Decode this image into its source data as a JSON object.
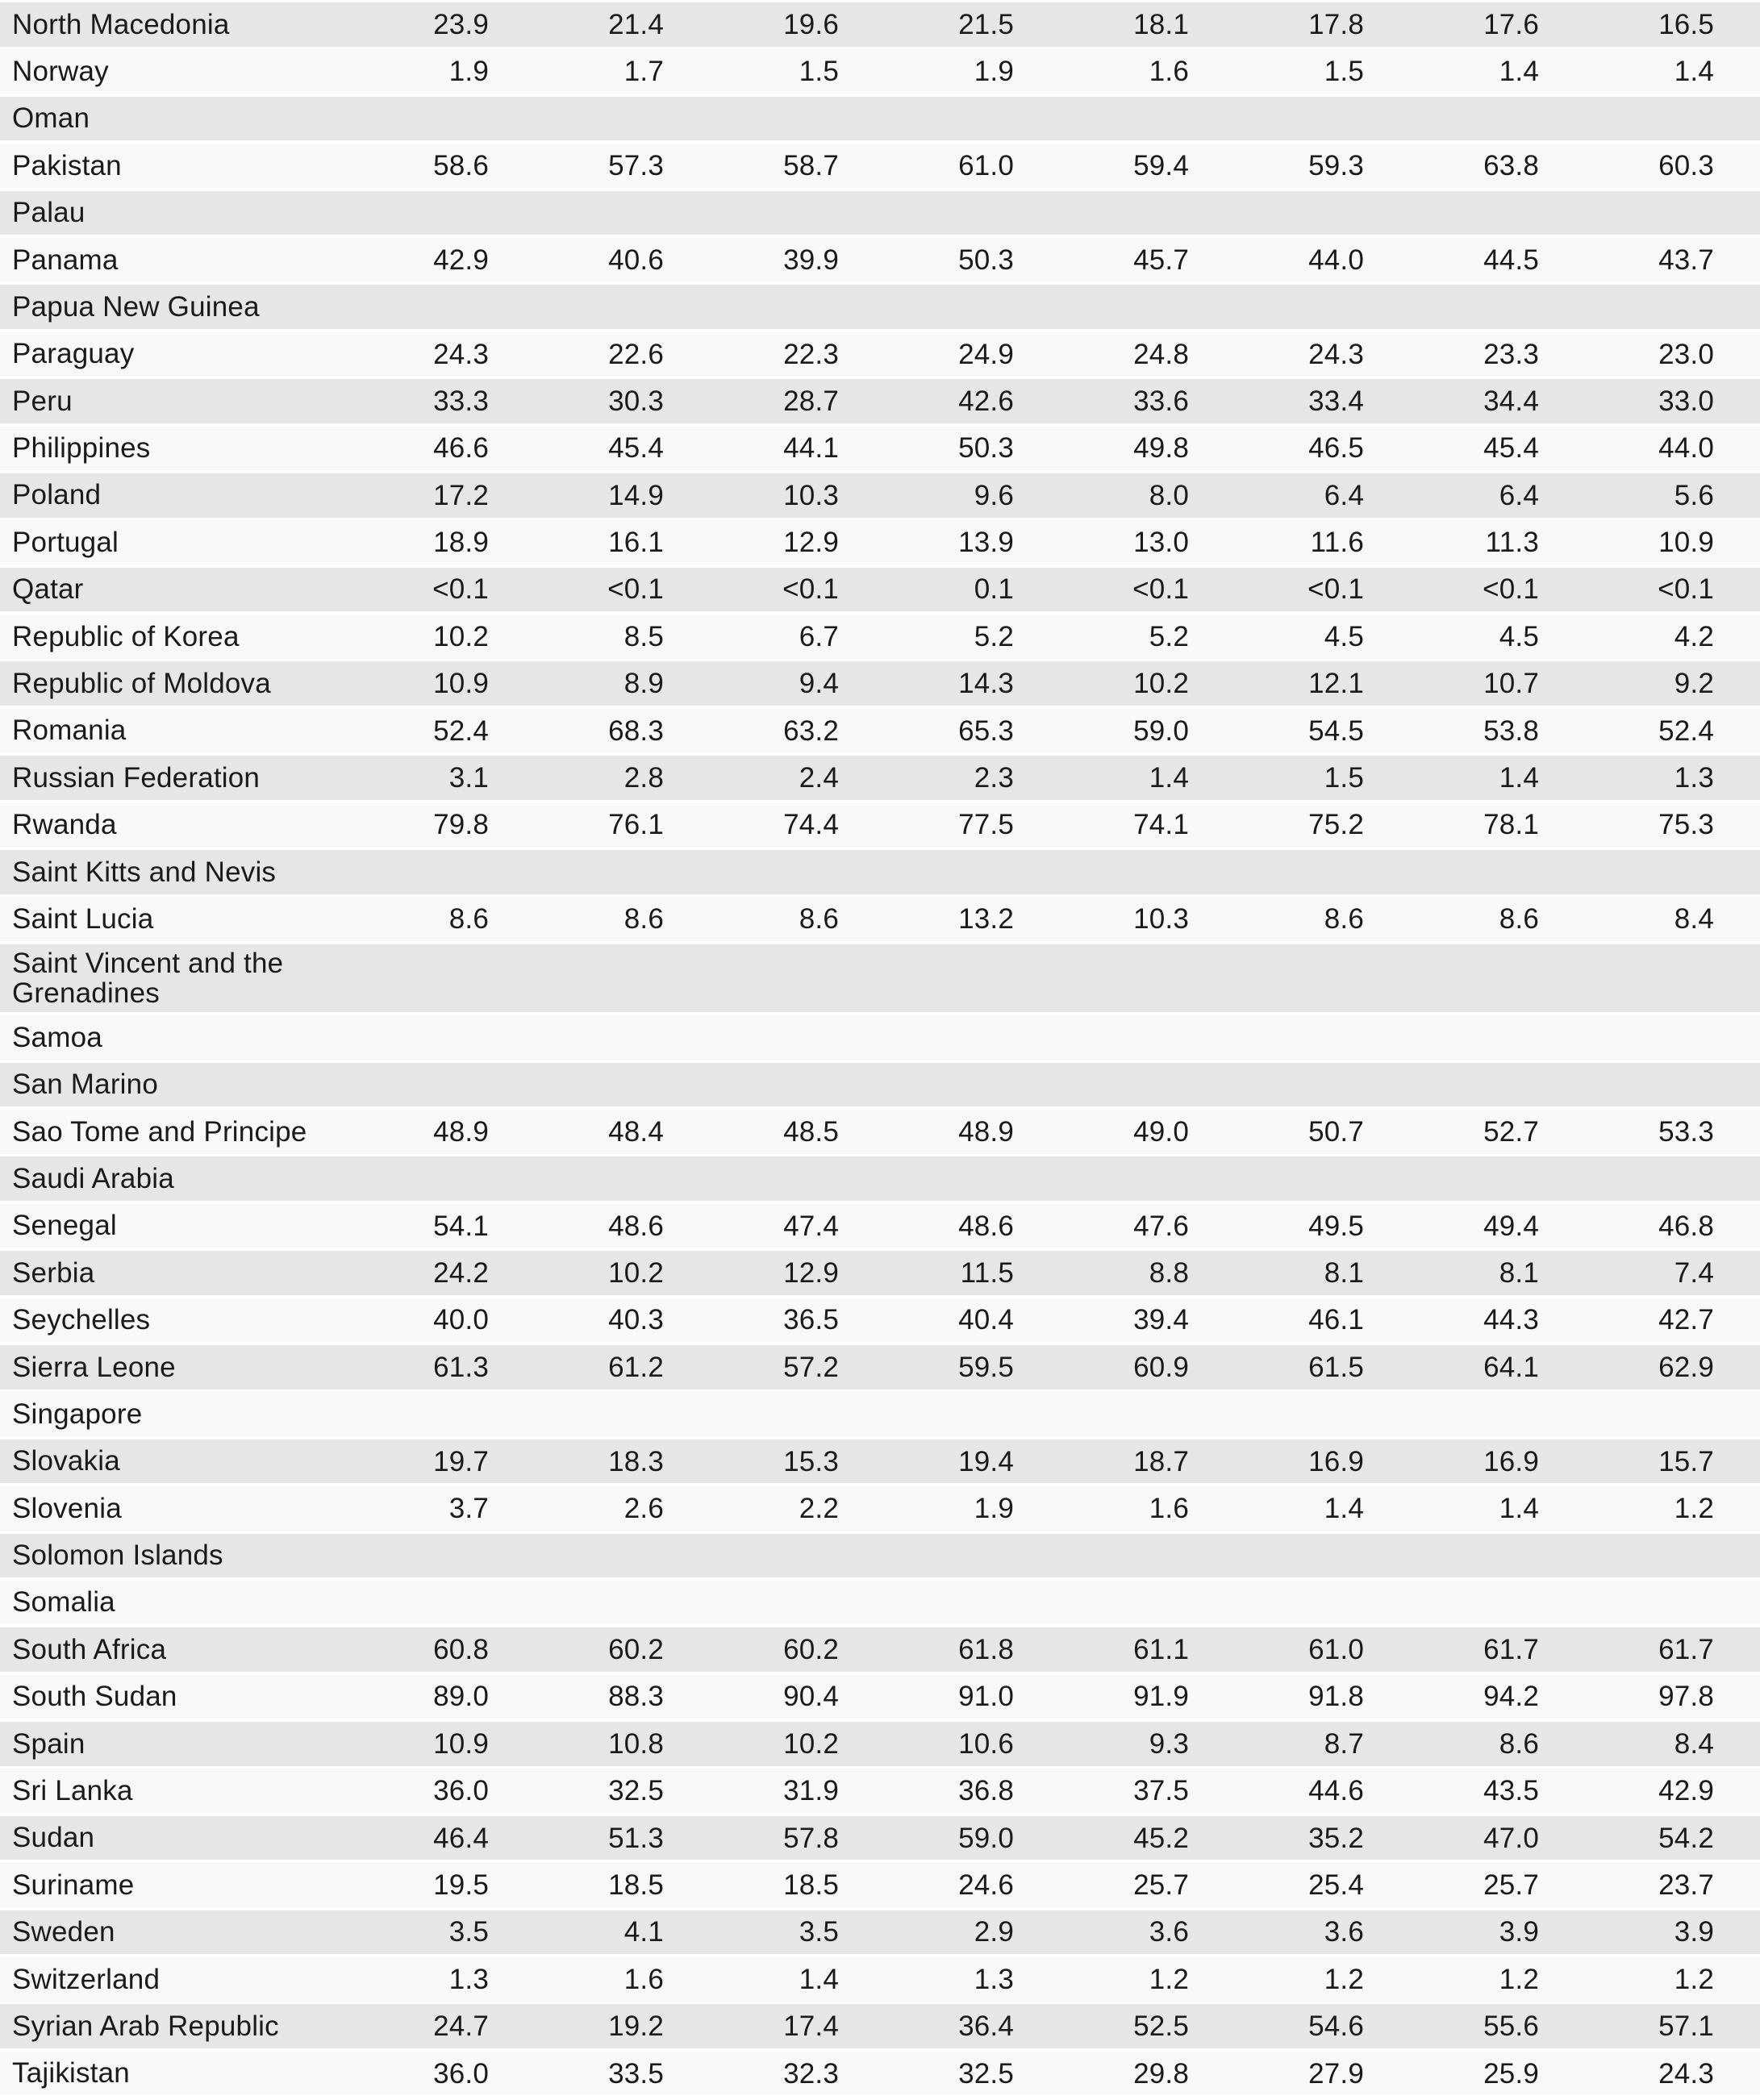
{
  "colors": {
    "page_bg": "#ffffff",
    "row_shaded": "#e6e6e6",
    "row_plain": "#f8f8f8",
    "text": "#1a1a1a"
  },
  "table": {
    "value_columns_count": 8,
    "rows": [
      {
        "country": "North Macedonia",
        "values": [
          "23.9",
          "21.4",
          "19.6",
          "21.5",
          "18.1",
          "17.8",
          "17.6",
          "16.5"
        ]
      },
      {
        "country": "Norway",
        "values": [
          "1.9",
          "1.7",
          "1.5",
          "1.9",
          "1.6",
          "1.5",
          "1.4",
          "1.4"
        ]
      },
      {
        "country": "Oman",
        "values": []
      },
      {
        "country": "Pakistan",
        "values": [
          "58.6",
          "57.3",
          "58.7",
          "61.0",
          "59.4",
          "59.3",
          "63.8",
          "60.3"
        ]
      },
      {
        "country": "Palau",
        "values": []
      },
      {
        "country": "Panama",
        "values": [
          "42.9",
          "40.6",
          "39.9",
          "50.3",
          "45.7",
          "44.0",
          "44.5",
          "43.7"
        ]
      },
      {
        "country": "Papua New Guinea",
        "values": []
      },
      {
        "country": "Paraguay",
        "values": [
          "24.3",
          "22.6",
          "22.3",
          "24.9",
          "24.8",
          "24.3",
          "23.3",
          "23.0"
        ]
      },
      {
        "country": "Peru",
        "values": [
          "33.3",
          "30.3",
          "28.7",
          "42.6",
          "33.6",
          "33.4",
          "34.4",
          "33.0"
        ]
      },
      {
        "country": "Philippines",
        "values": [
          "46.6",
          "45.4",
          "44.1",
          "50.3",
          "49.8",
          "46.5",
          "45.4",
          "44.0"
        ]
      },
      {
        "country": "Poland",
        "values": [
          "17.2",
          "14.9",
          "10.3",
          "9.6",
          "8.0",
          "6.4",
          "6.4",
          "5.6"
        ]
      },
      {
        "country": "Portugal",
        "values": [
          "18.9",
          "16.1",
          "12.9",
          "13.9",
          "13.0",
          "11.6",
          "11.3",
          "10.9"
        ]
      },
      {
        "country": "Qatar",
        "values": [
          "<0.1",
          "<0.1",
          "<0.1",
          "0.1",
          "<0.1",
          "<0.1",
          "<0.1",
          "<0.1"
        ]
      },
      {
        "country": "Republic of Korea",
        "values": [
          "10.2",
          "8.5",
          "6.7",
          "5.2",
          "5.2",
          "4.5",
          "4.5",
          "4.2"
        ]
      },
      {
        "country": "Republic of Moldova",
        "values": [
          "10.9",
          "8.9",
          "9.4",
          "14.3",
          "10.2",
          "12.1",
          "10.7",
          "9.2"
        ]
      },
      {
        "country": "Romania",
        "values": [
          "52.4",
          "68.3",
          "63.2",
          "65.3",
          "59.0",
          "54.5",
          "53.8",
          "52.4"
        ]
      },
      {
        "country": "Russian Federation",
        "values": [
          "3.1",
          "2.8",
          "2.4",
          "2.3",
          "1.4",
          "1.5",
          "1.4",
          "1.3"
        ]
      },
      {
        "country": "Rwanda",
        "values": [
          "79.8",
          "76.1",
          "74.4",
          "77.5",
          "74.1",
          "75.2",
          "78.1",
          "75.3"
        ]
      },
      {
        "country": "Saint Kitts and Nevis",
        "values": []
      },
      {
        "country": "Saint Lucia",
        "values": [
          "8.6",
          "8.6",
          "8.6",
          "13.2",
          "10.3",
          "8.6",
          "8.6",
          "8.4"
        ]
      },
      {
        "country": "Saint Vincent and the Grenadines",
        "values": [],
        "tall": true
      },
      {
        "country": "Samoa",
        "values": []
      },
      {
        "country": "San Marino",
        "values": []
      },
      {
        "country": "Sao Tome and Principe",
        "values": [
          "48.9",
          "48.4",
          "48.5",
          "48.9",
          "49.0",
          "50.7",
          "52.7",
          "53.3"
        ]
      },
      {
        "country": "Saudi Arabia",
        "values": []
      },
      {
        "country": "Senegal",
        "values": [
          "54.1",
          "48.6",
          "47.4",
          "48.6",
          "47.6",
          "49.5",
          "49.4",
          "46.8"
        ]
      },
      {
        "country": "Serbia",
        "values": [
          "24.2",
          "10.2",
          "12.9",
          "11.5",
          "8.8",
          "8.1",
          "8.1",
          "7.4"
        ]
      },
      {
        "country": "Seychelles",
        "values": [
          "40.0",
          "40.3",
          "36.5",
          "40.4",
          "39.4",
          "46.1",
          "44.3",
          "42.7"
        ]
      },
      {
        "country": "Sierra Leone",
        "values": [
          "61.3",
          "61.2",
          "57.2",
          "59.5",
          "60.9",
          "61.5",
          "64.1",
          "62.9"
        ]
      },
      {
        "country": "Singapore",
        "values": []
      },
      {
        "country": "Slovakia",
        "values": [
          "19.7",
          "18.3",
          "15.3",
          "19.4",
          "18.7",
          "16.9",
          "16.9",
          "15.7"
        ]
      },
      {
        "country": "Slovenia",
        "values": [
          "3.7",
          "2.6",
          "2.2",
          "1.9",
          "1.6",
          "1.4",
          "1.4",
          "1.2"
        ]
      },
      {
        "country": "Solomon Islands",
        "values": []
      },
      {
        "country": "Somalia",
        "values": []
      },
      {
        "country": "South Africa",
        "values": [
          "60.8",
          "60.2",
          "60.2",
          "61.8",
          "61.1",
          "61.0",
          "61.7",
          "61.7"
        ]
      },
      {
        "country": "South Sudan",
        "values": [
          "89.0",
          "88.3",
          "90.4",
          "91.0",
          "91.9",
          "91.8",
          "94.2",
          "97.8"
        ]
      },
      {
        "country": "Spain",
        "values": [
          "10.9",
          "10.8",
          "10.2",
          "10.6",
          "9.3",
          "8.7",
          "8.6",
          "8.4"
        ]
      },
      {
        "country": "Sri Lanka",
        "values": [
          "36.0",
          "32.5",
          "31.9",
          "36.8",
          "37.5",
          "44.6",
          "43.5",
          "42.9"
        ]
      },
      {
        "country": "Sudan",
        "values": [
          "46.4",
          "51.3",
          "57.8",
          "59.0",
          "45.2",
          "35.2",
          "47.0",
          "54.2"
        ]
      },
      {
        "country": "Suriname",
        "values": [
          "19.5",
          "18.5",
          "18.5",
          "24.6",
          "25.7",
          "25.4",
          "25.7",
          "23.7"
        ]
      },
      {
        "country": "Sweden",
        "values": [
          "3.5",
          "4.1",
          "3.5",
          "2.9",
          "3.6",
          "3.6",
          "3.9",
          "3.9"
        ]
      },
      {
        "country": "Switzerland",
        "values": [
          "1.3",
          "1.6",
          "1.4",
          "1.3",
          "1.2",
          "1.2",
          "1.2",
          "1.2"
        ]
      },
      {
        "country": "Syrian Arab Republic",
        "values": [
          "24.7",
          "19.2",
          "17.4",
          "36.4",
          "52.5",
          "54.6",
          "55.6",
          "57.1"
        ]
      },
      {
        "country": "Tajikistan",
        "values": [
          "36.0",
          "33.5",
          "32.3",
          "32.5",
          "29.8",
          "27.9",
          "25.9",
          "24.3"
        ]
      }
    ]
  }
}
